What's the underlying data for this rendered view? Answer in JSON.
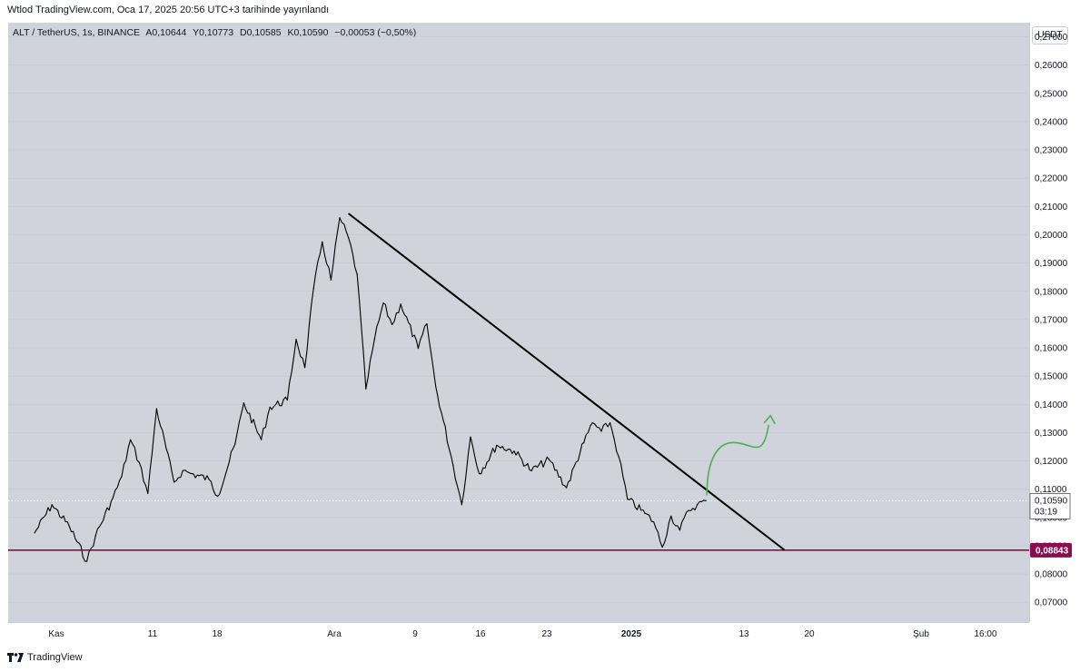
{
  "header": {
    "published": "Wtlod TradingView.com, Oca 17, 2025 20:56 UTC+3 tarihinde yayınlandı"
  },
  "symbol": {
    "name": "ALT / TetherUS, 1s, BINANCE",
    "open": "A0,10644",
    "high": "Y0,10773",
    "low": "D0,10585",
    "close": "K0,10590",
    "change": "−0,00053 (−0,50%)"
  },
  "currency_button": "USDT",
  "footer": {
    "brand": "TradingView"
  },
  "colors": {
    "background": "#d0d3db",
    "candles": "#000000",
    "support_line": "#880e4f",
    "arrow": "#4caf50",
    "trendline": "#000000"
  },
  "chart_data": {
    "type": "line",
    "title": "",
    "ylim": [
      0.063,
      0.275
    ],
    "price_ticks": [
      "0,27000",
      "0,26000",
      "0,25000",
      "0,24000",
      "0,23000",
      "0,22000",
      "0,21000",
      "0,20000",
      "0,19000",
      "0,18000",
      "0,17000",
      "0,16000",
      "0,15000",
      "0,14000",
      "0,13000",
      "0,12000",
      "0,11000",
      "0,10000",
      "0,09000",
      "0,08000",
      "0,07000"
    ],
    "time_ticks": [
      "Kas",
      "11",
      "18",
      "Ara",
      "9",
      "16",
      "23",
      "2025",
      "13",
      "20",
      "Şub",
      "16:00"
    ],
    "series": [
      {
        "x": [
          "Kas 1",
          "Kas 3",
          "Kas 5",
          "Kas 7",
          "Kas 8",
          "Kas 10",
          "Kas 11",
          "Kas 12",
          "Kas 13",
          "Kas 14",
          "Kas 15",
          "Kas 17",
          "Kas 18",
          "Kas 19",
          "Kas 21",
          "Kas 22",
          "Kas 24",
          "Kas 25",
          "Kas 27",
          "Kas 28",
          "Kas 30",
          "Ara 1",
          "Ara 2",
          "Ara 3",
          "Ara 4",
          "Ara 5",
          "Ara 6",
          "Ara 7",
          "Ara 8",
          "Ara 9",
          "Ara 10",
          "Ara 11",
          "Ara 12",
          "Ara 13",
          "Ara 15",
          "Ara 16",
          "Ara 17",
          "Ara 19",
          "Ara 20",
          "Ara 21",
          "Ara 22",
          "Ara 24",
          "Ara 26",
          "Ara 28",
          "Ara 30",
          "Oca 1",
          "Oca 3",
          "Oca 4",
          "Oca 5",
          "Oca 6",
          "Oca 7",
          "Oca 8",
          "Oca 10",
          "Oca 11",
          "Oca 12",
          "Oca 13",
          "Oca 14",
          "Oca 15",
          "Oca 16",
          "Oca 17"
        ],
        "values": [
          0.0945,
          0.1045,
          0.0968,
          0.0845,
          0.0935,
          0.107,
          0.1145,
          0.1275,
          0.1195,
          0.1085,
          0.1385,
          0.1125,
          0.1165,
          0.1155,
          0.1135,
          0.1075,
          0.126,
          0.1405,
          0.1275,
          0.139,
          0.1415,
          0.163,
          0.153,
          0.181,
          0.1975,
          0.184,
          0.206,
          0.199,
          0.186,
          0.1455,
          0.1632,
          0.1758,
          0.1682,
          0.1755,
          0.1598,
          0.1685,
          0.1465,
          0.1185,
          0.1045,
          0.1285,
          0.1155,
          0.1255,
          0.1235,
          0.1165,
          0.1205,
          0.1105,
          0.1265,
          0.1335,
          0.1305,
          0.1335,
          0.1215,
          0.1065,
          0.1015,
          0.0985,
          0.0895,
          0.1005,
          0.0955,
          0.1025,
          0.1045,
          0.1059
        ]
      }
    ],
    "trendline": {
      "from": {
        "x": "Ara 7",
        "y": 0.2075
      },
      "to": {
        "x": "Oca 26",
        "y": 0.0885
      }
    },
    "support": {
      "y": 0.08843,
      "label": "0,08843"
    },
    "last_price": {
      "y": 0.1059,
      "label": "0,10590",
      "countdown": "03:19"
    },
    "projection_arrow": {
      "direction": "up",
      "target_y": 0.136
    }
  }
}
